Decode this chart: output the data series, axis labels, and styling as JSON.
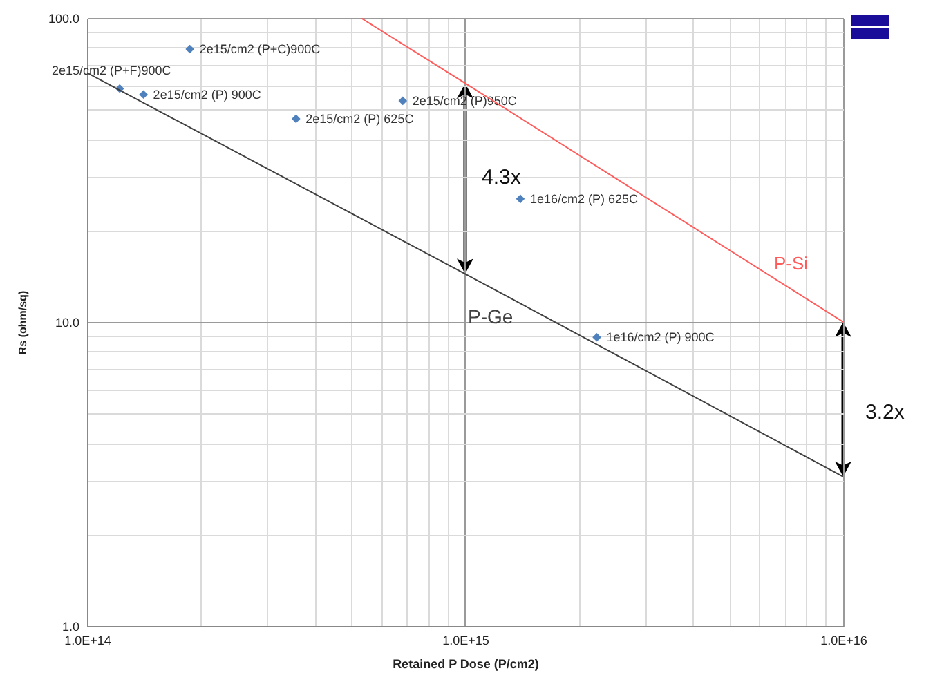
{
  "chart_data": {
    "type": "scatter",
    "xlabel": "Retained P Dose (P/cm2)",
    "ylabel": "Rs (ohm/sq)",
    "log": "xy",
    "grid": true,
    "xlim": [
      100000000000000.0,
      1e+16
    ],
    "ylim": [
      1,
      100
    ],
    "xticks": [
      {
        "value": 100000000000000.0,
        "label": "1.0E+14"
      },
      {
        "value": 200000000000000.0,
        "label": null
      },
      {
        "value": 300000000000000.0,
        "label": null
      },
      {
        "value": 400000000000000.0,
        "label": null
      },
      {
        "value": 500000000000000.0,
        "label": null
      },
      {
        "value": 600000000000000.0,
        "label": null
      },
      {
        "value": 700000000000000.0,
        "label": null
      },
      {
        "value": 800000000000000.0,
        "label": null
      },
      {
        "value": 900000000000000.0,
        "label": null
      },
      {
        "value": 1000000000000000.0,
        "label": "1.0E+15"
      },
      {
        "value": 2000000000000000.0,
        "label": null
      },
      {
        "value": 3000000000000000.0,
        "label": null
      },
      {
        "value": 4000000000000000.0,
        "label": null
      },
      {
        "value": 5000000000000000.0,
        "label": null
      },
      {
        "value": 6000000000000000.0,
        "label": null
      },
      {
        "value": 7000000000000000.0,
        "label": null
      },
      {
        "value": 8000000000000000.0,
        "label": null
      },
      {
        "value": 9000000000000000.0,
        "label": null
      },
      {
        "value": 1e+16,
        "label": "1.0E+16"
      }
    ],
    "yticks": [
      {
        "value": 1,
        "label": "1.0"
      },
      {
        "value": 2,
        "label": null
      },
      {
        "value": 3,
        "label": null
      },
      {
        "value": 4,
        "label": null
      },
      {
        "value": 5,
        "label": null
      },
      {
        "value": 6,
        "label": null
      },
      {
        "value": 7,
        "label": null
      },
      {
        "value": 8,
        "label": null
      },
      {
        "value": 9,
        "label": null
      },
      {
        "value": 10,
        "label": "10.0"
      },
      {
        "value": 20,
        "label": null
      },
      {
        "value": 30,
        "label": null
      },
      {
        "value": 40,
        "label": null
      },
      {
        "value": 50,
        "label": null
      },
      {
        "value": 60,
        "label": null
      },
      {
        "value": 70,
        "label": null
      },
      {
        "value": 80,
        "label": null
      },
      {
        "value": 90,
        "label": null
      },
      {
        "value": 100,
        "label": "100.0"
      }
    ],
    "series": [
      {
        "marker": "diamond",
        "color": "#4f81bd",
        "x": [
          187000000000000.0,
          122000000000000.0,
          141000000000000.0,
          357000000000000.0,
          684000000000000.0,
          1400000000000000.0,
          2230000000000000.0
        ],
        "values": [
          79,
          58.6,
          56,
          46.6,
          53.4,
          25.4,
          8.9
        ],
        "value_labels": [
          "2e15/cm2 (P+C)900C",
          "2e15/cm2 (P+F)900C",
          "2e15/cm2 (P) 900C",
          "2e15/cm2 (P) 625C",
          "2e15/cm2 (P)950C",
          "1e16/cm2 (P) 625C",
          "1e16/cm2 (P) 900C"
        ]
      },
      {
        "type": "line",
        "name": "P-Ge",
        "color": "#404040",
        "x": [
          100000000000000.0,
          1000000000000000.0,
          1e+16
        ],
        "values": [
          66,
          14.4,
          3.1
        ]
      },
      {
        "type": "line",
        "name": "P-Si",
        "color": "#ff5b5b",
        "x": [
          530000000000000.0,
          1000000000000000.0,
          1e+16
        ],
        "values": [
          100,
          61,
          10
        ]
      }
    ],
    "annotations": [
      "4.3x",
      "3.2x"
    ]
  }
}
